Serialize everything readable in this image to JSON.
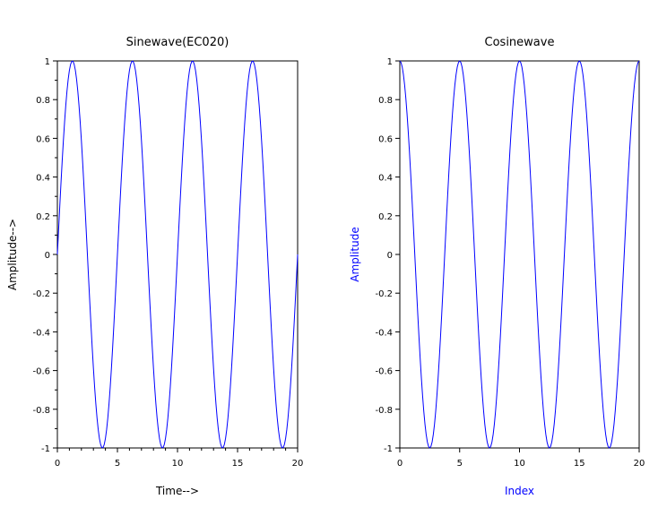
{
  "chart_data": [
    {
      "type": "line",
      "title": "Sinewave(EC020)",
      "xlabel": "Time-->",
      "ylabel": "Amplitude-->",
      "xlabel_color": "#000000",
      "ylabel_color": "#000000",
      "xlim": [
        0,
        20
      ],
      "ylim": [
        -1,
        1
      ],
      "x_ticks": [
        0,
        5,
        10,
        15,
        20
      ],
      "y_ticks": [
        -1,
        -0.8,
        -0.6,
        -0.4,
        -0.2,
        0,
        0.2,
        0.4,
        0.6,
        0.8,
        1
      ],
      "x_tick_labels": [
        "0",
        "5",
        "10",
        "15",
        "20"
      ],
      "y_tick_labels": [
        "-1",
        "-0.8",
        "-0.6",
        "-0.4",
        "-0.2",
        "0",
        "0.2",
        "0.4",
        "0.6",
        "0.8",
        "1"
      ],
      "grid": false,
      "series": [
        {
          "function": "sin",
          "period": 5,
          "amplitude": 1,
          "x_start": 0,
          "x_end": 20,
          "sample_step": 0.1,
          "color": "#0000ff"
        }
      ]
    },
    {
      "type": "line",
      "title": "Cosinewave",
      "xlabel": "Index",
      "ylabel": "Amplitude",
      "xlabel_color": "#0000ff",
      "ylabel_color": "#0000ff",
      "xlim": [
        0,
        20
      ],
      "ylim": [
        -1,
        1
      ],
      "x_ticks": [
        0,
        5,
        10,
        15,
        20
      ],
      "y_ticks": [
        -1,
        -0.8,
        -0.6,
        -0.4,
        -0.2,
        0,
        0.2,
        0.4,
        0.6,
        0.8,
        1
      ],
      "x_tick_labels": [
        "0",
        "5",
        "10",
        "15",
        "20"
      ],
      "y_tick_labels": [
        "-1",
        "-0.8",
        "-0.6",
        "-0.4",
        "-0.2",
        "0",
        "0.2",
        "0.4",
        "0.6",
        "0.8",
        "1"
      ],
      "grid": false,
      "series": [
        {
          "function": "cos",
          "period": 5,
          "amplitude": 1,
          "x_start": 0,
          "x_end": 20,
          "sample_step": 0.1,
          "color": "#0000ff"
        }
      ]
    }
  ]
}
